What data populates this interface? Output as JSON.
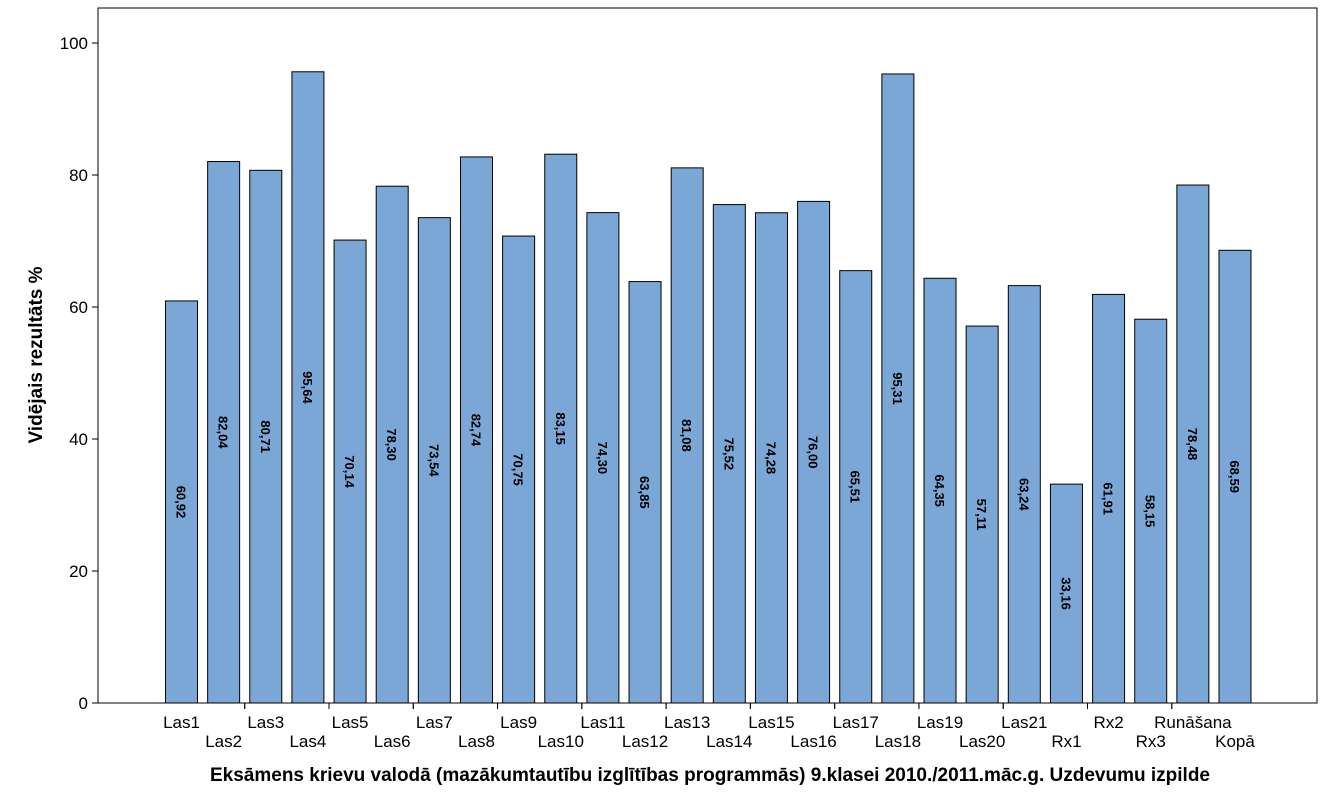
{
  "chart_data": {
    "type": "bar",
    "title": "",
    "xlabel": "Eksāmens krievu valodā (mazākumtautību izglītības programmās) 9.klasei 2010./2011.māc.g. Uzdevumu izpilde",
    "ylabel": "Vidējais rezultāts %",
    "ylim": [
      0,
      105
    ],
    "yticks": [
      0,
      20,
      40,
      60,
      80,
      100
    ],
    "grid": false,
    "bar_color": "#7BA7D6",
    "bar_edge_color": "#000000",
    "categories": [
      "Las1",
      "Las2",
      "Las3",
      "Las4",
      "Las5",
      "Las6",
      "Las7",
      "Las8",
      "Las9",
      "Las10",
      "Las11",
      "Las12",
      "Las13",
      "Las14",
      "Las15",
      "Las16",
      "Las17",
      "Las18",
      "Las19",
      "Las20",
      "Las21",
      "Rx1",
      "Rx2",
      "Rx3",
      "Runāšana",
      "Kopā"
    ],
    "values": [
      60.92,
      82.04,
      80.71,
      95.64,
      70.14,
      78.3,
      73.54,
      82.74,
      70.75,
      83.15,
      74.3,
      63.85,
      81.08,
      75.52,
      74.28,
      76.0,
      65.51,
      95.31,
      64.35,
      57.11,
      63.24,
      33.16,
      61.91,
      58.15,
      78.48,
      68.59
    ],
    "value_labels": [
      "60,92",
      "82,04",
      "80,71",
      "95,64",
      "70,14",
      "78,30",
      "73,54",
      "82,74",
      "70,75",
      "83,15",
      "74,30",
      "63,85",
      "81,08",
      "75,52",
      "74,28",
      "76,00",
      "65,51",
      "95,31",
      "64,35",
      "57,11",
      "63,24",
      "33,16",
      "61,91",
      "58,15",
      "78,48",
      "68,59"
    ]
  }
}
